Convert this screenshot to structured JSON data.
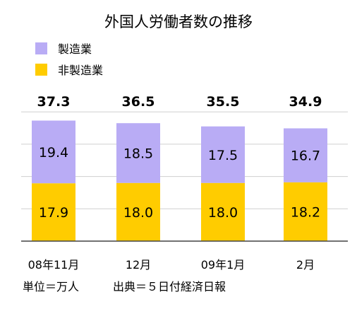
{
  "chart_data": {
    "type": "bar",
    "stacked": true,
    "title": "外国人労働者数の推移",
    "categories": [
      "08年11月",
      "12月",
      "09年1月",
      "2月"
    ],
    "series": [
      {
        "name": "非製造業",
        "values": [
          17.9,
          18.0,
          18.0,
          18.2
        ],
        "color": "#ffcc00"
      },
      {
        "name": "製造業",
        "values": [
          19.4,
          18.5,
          17.5,
          16.7
        ],
        "color": "#b9acf5"
      }
    ],
    "totals": [
      "37.3",
      "36.5",
      "35.5",
      "34.9"
    ],
    "segment_labels": [
      [
        "17.9",
        "18.0",
        "18.0",
        "18.2"
      ],
      [
        "19.4",
        "18.5",
        "17.5",
        "16.7"
      ]
    ],
    "legend": [
      {
        "label": "製造業",
        "color": "#b9acf5"
      },
      {
        "label": "非製造業",
        "color": "#ffcc00"
      }
    ],
    "legend_position": "top-left",
    "grid": true,
    "ylim": [
      0,
      40
    ],
    "unit_note": "単位＝万人",
    "source_note": "出典＝５日付経済日報"
  }
}
